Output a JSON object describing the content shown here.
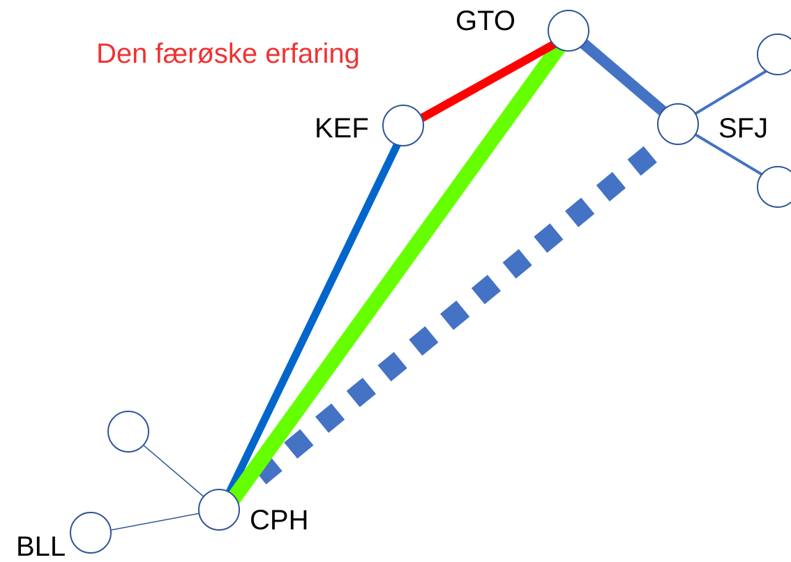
{
  "title": "Den færøske erfaring",
  "colors": {
    "title": "#ee3333",
    "red_route": "#ff0000",
    "green_route": "#66ff00",
    "blue_route": "#0066cc",
    "network_blue": "#4472c4",
    "node_fill": "#ffffff",
    "node_stroke": "#2f5597"
  },
  "nodes": {
    "gto": "GTO",
    "kef": "KEF",
    "sfj": "SFJ",
    "cph": "CPH",
    "bll": "BLL"
  },
  "connections": [
    {
      "from": "KEF",
      "to": "GTO",
      "style": "solid",
      "color": "red"
    },
    {
      "from": "CPH",
      "to": "GTO",
      "style": "solid",
      "color": "green"
    },
    {
      "from": "CPH",
      "to": "KEF",
      "style": "solid",
      "color": "blue"
    },
    {
      "from": "GTO",
      "to": "SFJ",
      "style": "solid",
      "color": "network-blue"
    },
    {
      "from": "CPH",
      "to": "SFJ",
      "style": "dotted",
      "color": "network-blue"
    },
    {
      "from": "CPH",
      "to": "BLL",
      "style": "thin",
      "color": "network-blue"
    }
  ]
}
